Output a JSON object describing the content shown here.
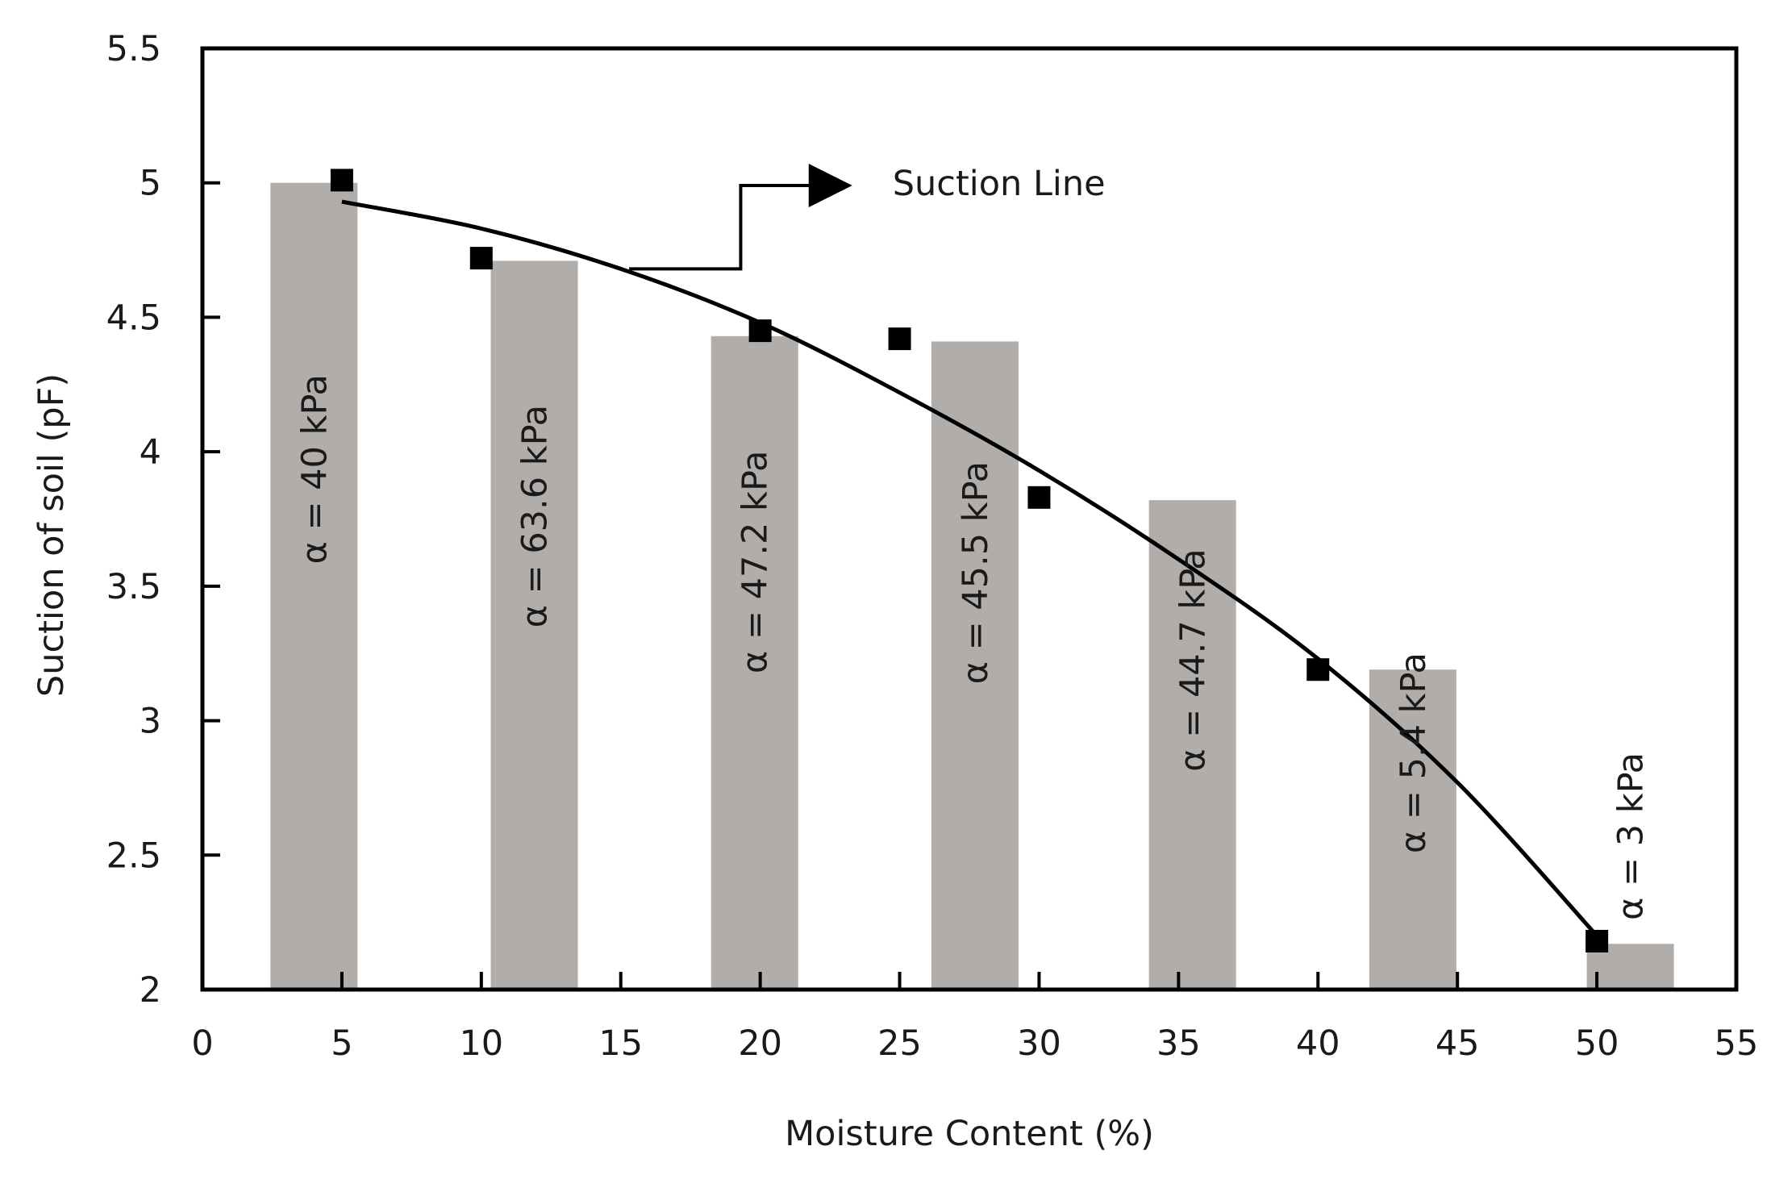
{
  "chart_data": {
    "type": "bar",
    "title": "",
    "xlabel": "Moisture Content (%)",
    "ylabel": "Suction of soil  (pF)",
    "xlim": [
      0,
      55
    ],
    "ylim": [
      2,
      5.5
    ],
    "x_ticks": [
      0,
      5,
      10,
      15,
      20,
      25,
      30,
      35,
      40,
      45,
      50,
      55
    ],
    "y_ticks": [
      2,
      2.5,
      3,
      3.5,
      4,
      4.5,
      5,
      5.5
    ],
    "x_tick_labels": [
      "0",
      "5",
      "10",
      "15",
      "20",
      "25",
      "30",
      "35",
      "40",
      "45",
      "50",
      "55"
    ],
    "y_tick_labels": [
      "2",
      "2.5",
      "3",
      "3.5",
      "4",
      "4.5",
      "5",
      "5.5"
    ],
    "grid": false,
    "bar_color": "#b0adab",
    "bars": [
      {
        "x": 4,
        "value": 5.0,
        "label": "α = 40 kPa"
      },
      {
        "x": 11.9,
        "value": 4.71,
        "label": "α = 63.6 kPa"
      },
      {
        "x": 19.8,
        "value": 4.43,
        "label": "α = 47.2 kPa"
      },
      {
        "x": 27.7,
        "value": 4.41,
        "label": "α = 45.5 kPa"
      },
      {
        "x": 35.5,
        "value": 3.82,
        "label": "α = 44.7 kPa"
      },
      {
        "x": 43.4,
        "value": 3.19,
        "label": "α = 5.4 kPa"
      },
      {
        "x": 51.2,
        "value": 2.17,
        "label": "α = 3 kPa"
      }
    ],
    "points": [
      {
        "x": 5,
        "y": 5.01
      },
      {
        "x": 10,
        "y": 4.72
      },
      {
        "x": 20,
        "y": 4.45
      },
      {
        "x": 25,
        "y": 4.42
      },
      {
        "x": 30,
        "y": 3.83
      },
      {
        "x": 40,
        "y": 3.19
      },
      {
        "x": 50,
        "y": 2.18
      }
    ],
    "fit_line": {
      "name": "Suction Line",
      "x": [
        5,
        10,
        15,
        20,
        25,
        30,
        35,
        40,
        45,
        50
      ],
      "y": [
        4.93,
        4.83,
        4.68,
        4.48,
        4.22,
        3.93,
        3.6,
        3.23,
        2.77,
        2.2
      ]
    },
    "annotation": {
      "text": "Suction Line",
      "arrow_from": {
        "x": 15.3,
        "y": 4.68
      },
      "elbow_x": 19.3,
      "arrow_to": {
        "x": 23.3,
        "y": 4.99
      }
    }
  }
}
